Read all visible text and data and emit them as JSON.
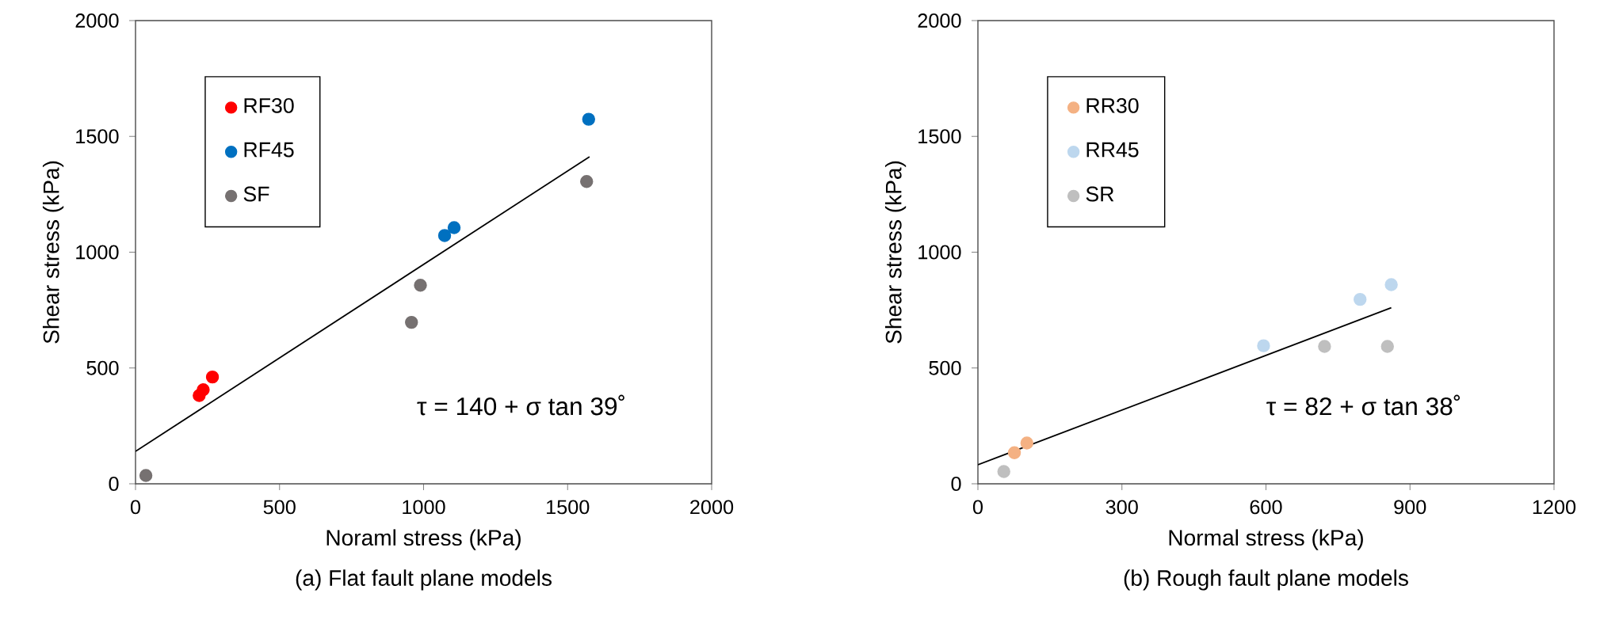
{
  "chart_data": [
    {
      "type": "scatter",
      "title": "(a) Flat fault plane models",
      "xlabel": "Noraml stress (kPa)",
      "ylabel": "Shear stress (kPa)",
      "xlim": [
        0,
        2000
      ],
      "ylim": [
        0,
        2000
      ],
      "xticks": [
        0,
        500,
        1000,
        1500,
        2000
      ],
      "yticks": [
        0,
        500,
        1000,
        1500,
        2000
      ],
      "grid": false,
      "legend": "top left",
      "marker": "circle",
      "annotations": [
        "τ = 140 + σ tan 39˚"
      ],
      "series": [
        {
          "name": "RF30",
          "color": "#ff0000",
          "x": [
            221,
            235,
            267
          ],
          "values": [
            381,
            406,
            461
          ]
        },
        {
          "name": "RF45",
          "color": "#0070c0",
          "x": [
            1073,
            1106,
            1573
          ],
          "values": [
            1072,
            1106,
            1574
          ]
        },
        {
          "name": "SF",
          "color": "#767171",
          "x": [
            36,
            958,
            989,
            1566
          ],
          "values": [
            36,
            697,
            857,
            1305
          ]
        },
        {
          "type": "line",
          "color": "#000000",
          "marker": "none",
          "x": [
            0,
            1576
          ],
          "values": [
            140,
            1412
          ]
        }
      ]
    },
    {
      "type": "scatter",
      "title": "(b) Rough fault plane models",
      "xlabel": "Normal stress (kPa)",
      "ylabel": "Shear stress (kPa)",
      "xlim": [
        0,
        1200
      ],
      "ylim": [
        0,
        2000
      ],
      "xticks": [
        0,
        300,
        600,
        900,
        1200
      ],
      "yticks": [
        0,
        500,
        1000,
        1500,
        2000
      ],
      "grid": false,
      "legend": "top left",
      "marker": "circle",
      "annotations": [
        "τ = 82 + σ tan 38˚"
      ],
      "series": [
        {
          "name": "RR30",
          "color": "#f4b183",
          "x": [
            76,
            102
          ],
          "values": [
            134,
            176
          ]
        },
        {
          "name": "RR45",
          "color": "#bdd7ee",
          "x": [
            595,
            796,
            861
          ],
          "values": [
            596,
            796,
            860
          ]
        },
        {
          "name": "SR",
          "color": "#bfbfbf",
          "x": [
            54,
            722,
            853
          ],
          "values": [
            53,
            593,
            593
          ]
        },
        {
          "type": "line",
          "color": "#000000",
          "marker": "none",
          "x": [
            0,
            861
          ],
          "values": [
            82,
            760
          ]
        }
      ]
    }
  ]
}
